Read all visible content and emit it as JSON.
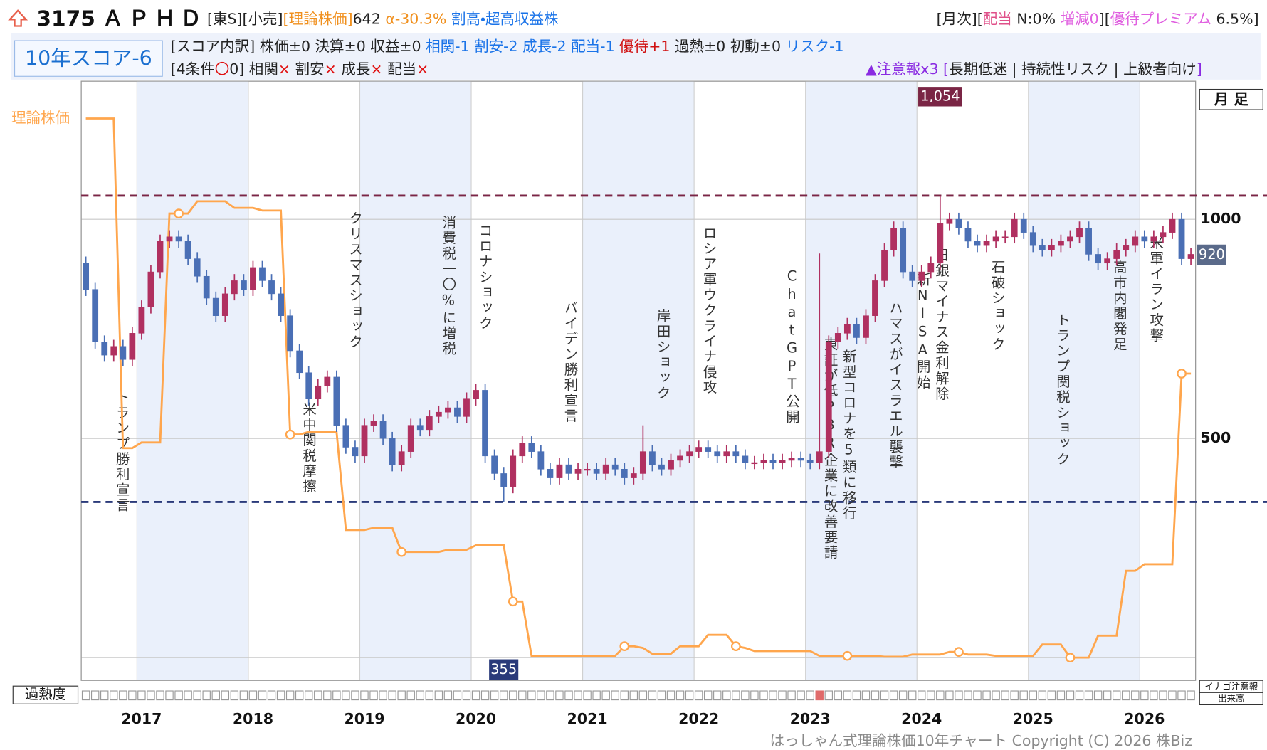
{
  "header": {
    "code": "3175",
    "name": "ＡＰＨＤ",
    "line1": [
      {
        "text": "[東S][小売]",
        "color": "#222222"
      },
      {
        "text": "[理論株価]",
        "color": "#f0901e"
      },
      {
        "text": "642 ",
        "color": "#222222"
      },
      {
        "text": "α-30.3% ",
        "color": "#f0901e"
      },
      {
        "text": "割高・超高収益株",
        "color": "#1a73e8"
      }
    ],
    "line1_right": [
      {
        "text": "[月次][",
        "color": "#222222"
      },
      {
        "text": "配当",
        "color": "#e0508a"
      },
      {
        "text": " N:0% ",
        "color": "#222222"
      },
      {
        "text": "増減0",
        "color": "#e060e0"
      },
      {
        "text": "][",
        "color": "#222222"
      },
      {
        "text": "優待プレミアム",
        "color": "#e060e0"
      },
      {
        "text": " 6.5%]",
        "color": "#222222"
      }
    ],
    "score": "10年スコア-6",
    "line2": [
      {
        "text": "[スコア内訳] 株価±0 決算±0 収益±0 ",
        "color": "#222222"
      },
      {
        "text": "相関-1 割安-2 成長-2 配当-1 ",
        "color": "#1a73e8"
      },
      {
        "text": "優待+1 ",
        "color": "#d01010"
      },
      {
        "text": "過熱±0 初動±0 ",
        "color": "#222222"
      },
      {
        "text": "リスク-1",
        "color": "#1a73e8"
      }
    ],
    "line3": [
      {
        "text": "[4条件",
        "color": "#222222"
      },
      {
        "text": "〇",
        "color": "#e01010"
      },
      {
        "text": "0] 相関",
        "color": "#222222"
      },
      {
        "text": "×",
        "color": "#e01010"
      },
      {
        "text": " 割安",
        "color": "#222222"
      },
      {
        "text": "×",
        "color": "#e01010"
      },
      {
        "text": " 成長",
        "color": "#222222"
      },
      {
        "text": "×",
        "color": "#e01010"
      },
      {
        "text": " 配当",
        "color": "#222222"
      },
      {
        "text": "×",
        "color": "#e01010"
      }
    ],
    "line3_right": [
      {
        "text": "▲注意報x3 [",
        "color": "#8a2be2"
      },
      {
        "text": "長期低迷 | 持続性リスク | 上級者向け",
        "color": "#222222"
      },
      {
        "text": "]",
        "color": "#8a2be2"
      }
    ]
  },
  "chart_data": {
    "type": "candlestick",
    "period_label": "月 足",
    "ylim": [
      -52,
      1315
    ],
    "yticks": [
      500,
      1000
    ],
    "grid": true,
    "years": [
      "2017",
      "2018",
      "2019",
      "2020",
      "2021",
      "2022",
      "2023",
      "2024",
      "2025",
      "2026"
    ],
    "up_color": "#b03060",
    "down_color": "#4a6fb5",
    "open": [
      900,
      840,
      720,
      690,
      710,
      680,
      740,
      800,
      880,
      950,
      960,
      950,
      910,
      870,
      820,
      780,
      830,
      860,
      840,
      890,
      860,
      830,
      780,
      700,
      650,
      590,
      620,
      640,
      530,
      480,
      460,
      530,
      540,
      500,
      440,
      470,
      530,
      520,
      550,
      560,
      570,
      550,
      590,
      610,
      460,
      420,
      390,
      460,
      490,
      470,
      430,
      410,
      440,
      420,
      430,
      430,
      420,
      440,
      430,
      410,
      420,
      470,
      440,
      430,
      450,
      460,
      470,
      480,
      470,
      460,
      470,
      460,
      445,
      445,
      450,
      445,
      450,
      455,
      450,
      445,
      470,
      720,
      740,
      760,
      730,
      780,
      860,
      930,
      980,
      880,
      860,
      880,
      900,
      990,
      1000,
      980,
      950,
      940,
      950,
      960,
      960,
      1000,
      970,
      940,
      930,
      940,
      950,
      960,
      980,
      920,
      900,
      910,
      930,
      940,
      960,
      950,
      960,
      970,
      1000,
      910
    ],
    "high": [
      915,
      855,
      735,
      725,
      725,
      755,
      815,
      895,
      965,
      975,
      975,
      965,
      925,
      885,
      835,
      845,
      875,
      875,
      905,
      905,
      875,
      845,
      795,
      715,
      665,
      635,
      655,
      655,
      545,
      495,
      545,
      555,
      555,
      515,
      485,
      545,
      545,
      565,
      575,
      585,
      585,
      605,
      625,
      625,
      475,
      435,
      475,
      505,
      505,
      485,
      445,
      455,
      455,
      445,
      445,
      445,
      455,
      455,
      445,
      435,
      530,
      485,
      455,
      465,
      475,
      485,
      495,
      495,
      485,
      485,
      485,
      475,
      460,
      465,
      465,
      465,
      470,
      470,
      465,
      922,
      735,
      755,
      775,
      775,
      795,
      875,
      945,
      995,
      995,
      895,
      895,
      915,
      1054,
      1015,
      1015,
      995,
      965,
      965,
      975,
      975,
      1015,
      1015,
      985,
      955,
      955,
      965,
      975,
      995,
      995,
      935,
      925,
      945,
      955,
      975,
      975,
      975,
      985,
      1015,
      1015,
      935
    ],
    "low": [
      825,
      705,
      675,
      675,
      665,
      665,
      725,
      785,
      865,
      935,
      935,
      895,
      855,
      805,
      765,
      765,
      815,
      825,
      825,
      845,
      815,
      765,
      685,
      635,
      575,
      575,
      605,
      515,
      465,
      445,
      445,
      515,
      485,
      425,
      425,
      455,
      505,
      505,
      535,
      545,
      535,
      535,
      575,
      445,
      405,
      355,
      375,
      445,
      455,
      415,
      395,
      395,
      405,
      405,
      415,
      405,
      405,
      415,
      395,
      395,
      405,
      425,
      415,
      415,
      435,
      445,
      455,
      455,
      445,
      445,
      445,
      430,
      430,
      430,
      430,
      430,
      435,
      435,
      430,
      430,
      455,
      705,
      725,
      715,
      715,
      765,
      845,
      915,
      865,
      845,
      845,
      865,
      885,
      975,
      965,
      935,
      925,
      925,
      935,
      945,
      945,
      955,
      925,
      915,
      915,
      925,
      935,
      945,
      905,
      885,
      885,
      895,
      915,
      925,
      935,
      935,
      945,
      955,
      895,
      895
    ],
    "close": [
      840,
      720,
      690,
      710,
      680,
      740,
      800,
      880,
      950,
      960,
      950,
      910,
      870,
      820,
      780,
      830,
      860,
      840,
      890,
      860,
      830,
      780,
      700,
      650,
      590,
      620,
      640,
      530,
      480,
      460,
      530,
      540,
      500,
      440,
      470,
      530,
      520,
      550,
      560,
      570,
      550,
      590,
      610,
      460,
      420,
      390,
      460,
      490,
      470,
      430,
      410,
      440,
      420,
      430,
      430,
      420,
      440,
      430,
      410,
      420,
      470,
      440,
      430,
      450,
      460,
      470,
      480,
      470,
      460,
      470,
      460,
      445,
      445,
      450,
      445,
      450,
      455,
      450,
      445,
      470,
      720,
      740,
      760,
      730,
      780,
      860,
      930,
      980,
      880,
      860,
      880,
      900,
      990,
      1000,
      980,
      950,
      940,
      950,
      960,
      960,
      1000,
      970,
      940,
      930,
      940,
      950,
      960,
      980,
      920,
      900,
      910,
      930,
      940,
      960,
      950,
      960,
      970,
      1000,
      910,
      920
    ],
    "theory": {
      "name": "理論株価",
      "color": "#ffa64d",
      "values": [
        1230,
        1230,
        1230,
        1230,
        478,
        478,
        491,
        491,
        491,
        1013,
        1013,
        1013,
        1041,
        1041,
        1041,
        1041,
        1026,
        1026,
        1026,
        1020,
        1020,
        1020,
        509,
        509,
        515,
        515,
        515,
        515,
        291,
        291,
        291,
        296,
        296,
        296,
        241,
        241,
        241,
        241,
        241,
        246,
        246,
        246,
        256,
        256,
        256,
        256,
        128,
        128,
        4,
        4,
        4,
        4,
        4,
        4,
        4,
        4,
        4,
        4,
        26,
        26,
        22,
        9,
        9,
        9,
        26,
        26,
        26,
        52,
        52,
        52,
        26,
        22,
        15,
        15,
        15,
        15,
        15,
        15,
        15,
        4,
        4,
        4,
        4,
        4,
        4,
        4,
        2,
        2,
        2,
        7,
        7,
        7,
        7,
        13,
        13,
        7,
        7,
        7,
        4,
        4,
        4,
        4,
        4,
        30,
        30,
        30,
        0,
        0,
        0,
        50,
        50,
        50,
        198,
        198,
        213,
        213,
        213,
        213,
        648,
        648
      ]
    },
    "high_label": {
      "value": 1054,
      "label": "1,054"
    },
    "low_label": 355,
    "last_label": 920,
    "annotations": [
      "トランプ勝利宣言",
      "米中関税摩擦",
      "クリスマスショック",
      "消費税一〇%に増税",
      "コロナショック",
      "バイデン勝利宣言",
      "岸田ショック",
      "ロシア軍ウクライナ侵攻",
      "ChatGPT公開",
      "東証が低PBR企業に改善要請",
      "新型コロナを5類に移行",
      "ハマスがイスラエル襲撃",
      "新NISA開始",
      "日銀マイナス金利解除",
      "石破ショック",
      "トランプ関税ショック",
      "高市内閣発足",
      "米軍イラン攻撃"
    ],
    "overheat": {
      "label": "過熱度",
      "flagged": [
        79
      ],
      "color": "#e06b6b"
    },
    "side_labels": {
      "alert": "イナゴ注意報",
      "volume": "出来高"
    }
  },
  "footer": "はっしゃん式理論株価10年チャート Copyright (C) 2026 株Biz"
}
